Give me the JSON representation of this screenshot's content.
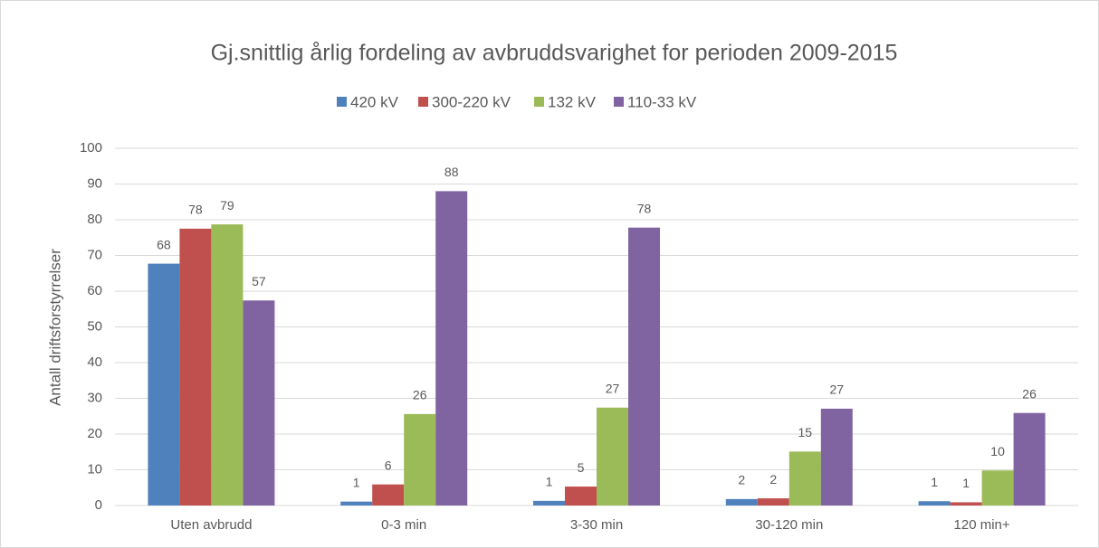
{
  "chart_data": {
    "type": "bar",
    "title": "Gj.snittlig årlig fordeling av avbruddsvarighet for perioden 2009-2015",
    "y_label": "Antall driftsforstyrrelser",
    "categories": [
      "Uten avbrudd",
      "0-3 min",
      "3-30 min",
      "30-120 min",
      "120 min+"
    ],
    "series": [
      {
        "name": "420 kV",
        "color": "#4f81bd",
        "values": [
          67.7,
          1.1,
          1.3,
          1.8,
          1.2
        ],
        "value_labels": [
          "68",
          "1",
          "1",
          "2",
          "1"
        ]
      },
      {
        "name": "300-220 kV",
        "color": "#c0504d",
        "values": [
          77.5,
          5.9,
          5.3,
          2.0,
          0.9
        ],
        "value_labels": [
          "78",
          "6",
          "5",
          "2",
          "1"
        ]
      },
      {
        "name": "132 kV",
        "color": "#9bbb59",
        "values": [
          78.7,
          25.6,
          27.4,
          15.1,
          9.8
        ],
        "value_labels": [
          "79",
          "26",
          "27",
          "15",
          "10"
        ]
      },
      {
        "name": "110-33 kV",
        "color": "#8064a2",
        "values": [
          57.4,
          88,
          77.8,
          27.1,
          25.9
        ],
        "value_labels": [
          "57",
          "88",
          "78",
          "27",
          "26"
        ]
      }
    ],
    "ylim": [
      0,
      100
    ],
    "yticks": [
      0,
      10,
      20,
      30,
      40,
      50,
      60,
      70,
      80,
      90,
      100
    ],
    "grid": true,
    "legend": "top"
  }
}
